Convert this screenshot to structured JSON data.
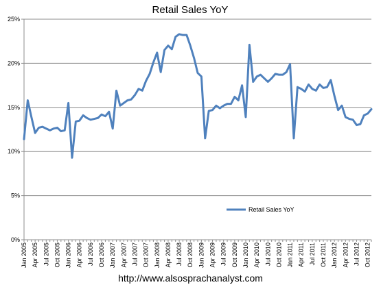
{
  "source_url": "http://www.alsosprachanalyst.com",
  "chart_data": {
    "type": "line",
    "title": "Retail Sales  YoY",
    "xlabel": "",
    "ylabel": "",
    "ylim": [
      0,
      25
    ],
    "y_ticks": [
      "0%",
      "5%",
      "10%",
      "15%",
      "20%",
      "25%"
    ],
    "x_tick_labels": [
      "Jan 2005",
      "Apr 2005",
      "Jul 2005",
      "Oct 2005",
      "Jan 2006",
      "Apr 2006",
      "Jul 2006",
      "Oct 2006",
      "Jan 2007",
      "Apr 2007",
      "Jul 2007",
      "Oct 2007",
      "Jan 2008",
      "Apr 2008",
      "Jul 2008",
      "Oct 2008",
      "Jan 2009",
      "Apr 2009",
      "Jul 2009",
      "Oct 2009",
      "Jan 2010",
      "Apr 2010",
      "Jul 2010",
      "Oct 2010",
      "Jan 2011",
      "Apr 2011",
      "Jul 2011",
      "Oct 2011",
      "Jan 2012",
      "Apr 2012",
      "Jul 2012",
      "Oct 2012"
    ],
    "grid": "horizontal",
    "legend_position": "bottom-right",
    "series": [
      {
        "name": "Retail Sales YoY",
        "color": "#4f81bd",
        "values": [
          11.4,
          15.8,
          13.9,
          12.1,
          12.7,
          12.8,
          12.6,
          12.4,
          12.6,
          12.7,
          12.3,
          12.4,
          15.5,
          9.3,
          13.4,
          13.5,
          14.1,
          13.8,
          13.6,
          13.7,
          13.8,
          14.2,
          14.0,
          14.5,
          12.6,
          16.9,
          15.2,
          15.5,
          15.8,
          15.9,
          16.4,
          17.1,
          16.9,
          18.0,
          18.8,
          20.1,
          21.2,
          19.0,
          21.5,
          22.0,
          21.6,
          23.0,
          23.3,
          23.2,
          23.2,
          22.0,
          20.6,
          18.9,
          18.5,
          11.5,
          14.6,
          14.7,
          15.2,
          14.9,
          15.2,
          15.4,
          15.4,
          16.2,
          15.8,
          17.5,
          13.9,
          22.1,
          17.9,
          18.5,
          18.7,
          18.3,
          17.9,
          18.3,
          18.8,
          18.7,
          18.7,
          19.0,
          19.9,
          11.5,
          17.3,
          17.1,
          16.8,
          17.6,
          17.1,
          16.9,
          17.6,
          17.2,
          17.3,
          18.1,
          16.3,
          14.7,
          15.2,
          13.9,
          13.7,
          13.6,
          13.0,
          13.1,
          14.1,
          14.3,
          14.8
        ]
      }
    ]
  }
}
